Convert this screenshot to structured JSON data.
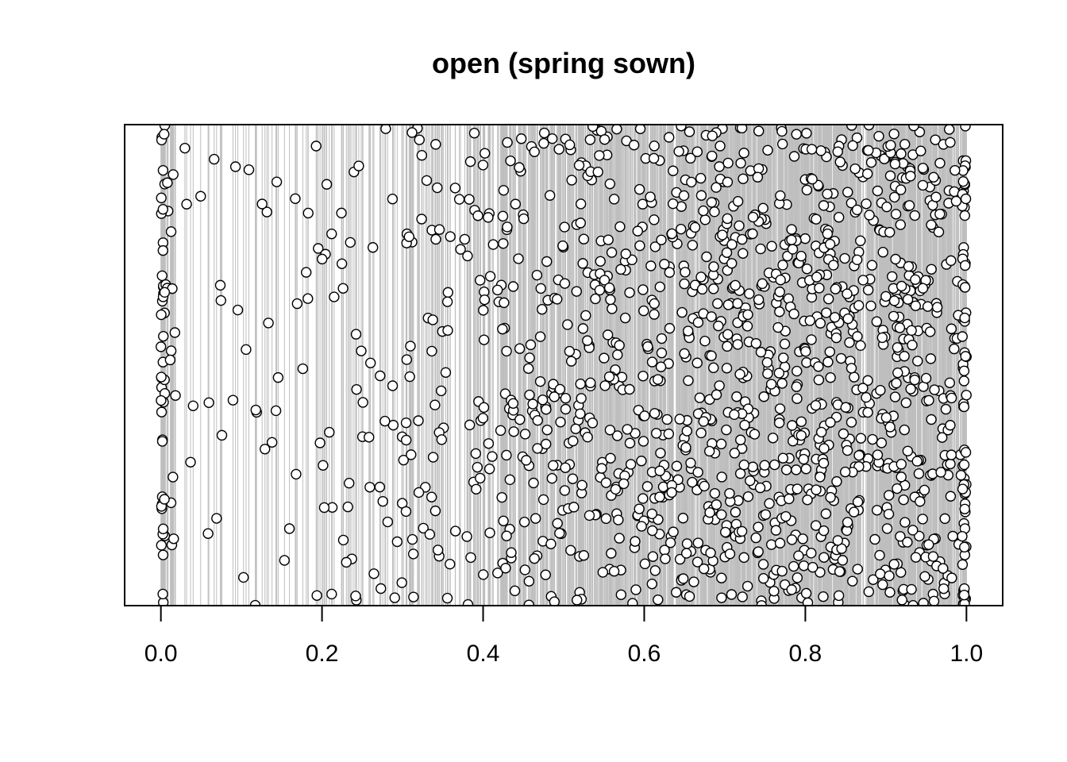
{
  "chart_data": {
    "type": "scatter",
    "title": "open (spring sown)",
    "xlabel": "",
    "ylabel": "",
    "xlim": [
      -0.045,
      1.045
    ],
    "ylim": [
      0,
      1
    ],
    "x_ticks": [
      0.0,
      0.2,
      0.4,
      0.6,
      0.8,
      1.0
    ],
    "x_tick_labels": [
      "0.0",
      "0.2",
      "0.4",
      "0.6",
      "0.8",
      "1.0"
    ],
    "y_axis_shown": false,
    "grid": "vertical rug lines at every point x-position",
    "rug_color": "#bebebe",
    "point_style": "open circle, black outline, white fill",
    "n_points_approx": 1500,
    "distribution": {
      "note": "point density (relative weight) by x interval, read from the plot",
      "x_bins": [
        [
          0.0,
          0.02
        ],
        [
          0.02,
          0.1
        ],
        [
          0.1,
          0.2
        ],
        [
          0.2,
          0.3
        ],
        [
          0.3,
          0.4
        ],
        [
          0.4,
          0.5
        ],
        [
          0.5,
          0.6
        ],
        [
          0.6,
          0.7
        ],
        [
          0.7,
          0.8
        ],
        [
          0.8,
          0.9
        ],
        [
          0.9,
          0.98
        ],
        [
          0.98,
          1.0
        ]
      ],
      "weights": [
        2.0,
        0.5,
        0.9,
        1.6,
        2.6,
        4.2,
        5.6,
        7.0,
        8.0,
        8.0,
        7.0,
        3.0
      ]
    },
    "edge_clusters": {
      "x_near_0": [
        0.0,
        0.005
      ],
      "x_near_1": [
        0.995,
        1.0
      ]
    }
  }
}
